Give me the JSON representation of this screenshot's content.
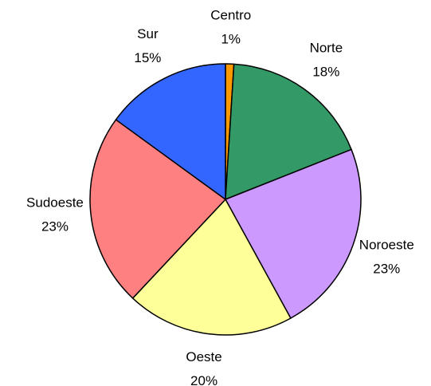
{
  "chart_data": {
    "type": "pie",
    "categories": [
      "Centro",
      "Norte",
      "Noroeste",
      "Oeste",
      "Sudoeste",
      "Sur"
    ],
    "values": [
      1,
      18,
      23,
      20,
      23,
      15
    ],
    "value_labels": [
      "1%",
      "18%",
      "23%",
      "20%",
      "23%",
      "15%"
    ],
    "colors": [
      "#ff9900",
      "#339966",
      "#cc99ff",
      "#ffff99",
      "#ff8080",
      "#3366ff"
    ]
  }
}
